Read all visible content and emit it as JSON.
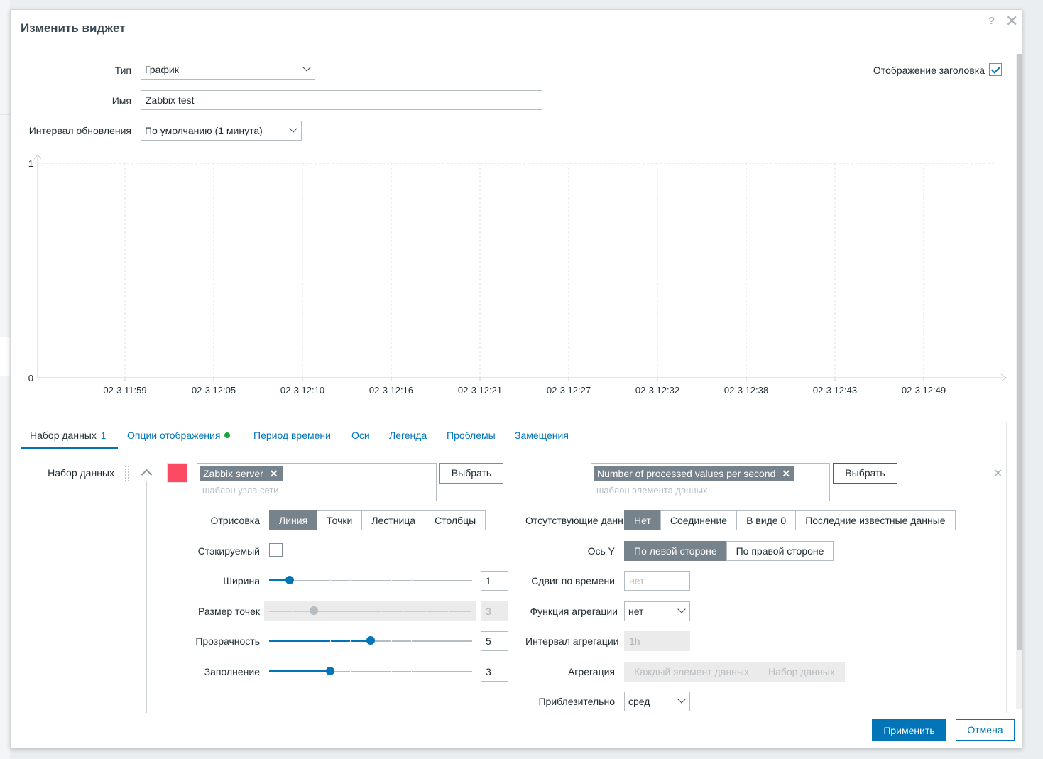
{
  "dialog": {
    "title": "Изменить виджет",
    "help_icon": "?",
    "close_icon": "✕"
  },
  "form": {
    "type_label": "Тип",
    "type_value": "График",
    "name_label": "Имя",
    "name_value": "Zabbix test",
    "refresh_label": "Интервал обновления",
    "refresh_value": "По умолчанию (1 минута)",
    "show_header_label": "Отображение заголовка",
    "show_header_checked": true
  },
  "chart_data": {
    "type": "line",
    "title": "",
    "xlabel": "",
    "ylabel": "",
    "x_ticks": [
      "02-3 11:59",
      "02-3 12:05",
      "02-3 12:10",
      "02-3 12:16",
      "02-3 12:21",
      "02-3 12:27",
      "02-3 12:32",
      "02-3 12:38",
      "02-3 12:43",
      "02-3 12:49"
    ],
    "y_ticks": [
      "0",
      "1"
    ],
    "ylim": [
      0,
      1
    ],
    "series": [],
    "grid": true
  },
  "tabs": [
    {
      "label": "Набор данных",
      "count": "1",
      "active": true
    },
    {
      "label": "Опции отображения",
      "indicator": "green"
    },
    {
      "label": "Период времени"
    },
    {
      "label": "Оси"
    },
    {
      "label": "Легенда"
    },
    {
      "label": "Проблемы"
    },
    {
      "label": "Замещения"
    }
  ],
  "dataset": {
    "label": "Набор данных",
    "color": "#fc4a63",
    "host_chip": "Zabbix server",
    "host_placeholder": "шаблон узла сети",
    "item_chip": "Number of processed values per second",
    "item_placeholder": "шаблон элемента данных",
    "select_label": "Выбрать",
    "chip_remove": "✕",
    "remove_icon": "✕"
  },
  "options_left": {
    "draw_label": "Отрисовка",
    "draw_options": [
      "Линия",
      "Точки",
      "Лестница",
      "Столбцы"
    ],
    "draw_selected": 0,
    "stacked_label": "Стэкируемый",
    "width_label": "Ширина",
    "width_value": "1",
    "width_range": [
      0,
      10
    ],
    "pointsize_label": "Размер точек",
    "pointsize_value": "3",
    "pointsize_range": [
      1,
      10
    ],
    "transparency_label": "Прозрачность",
    "transparency_value": "5",
    "transparency_range": [
      0,
      10
    ],
    "fill_label": "Заполнение",
    "fill_value": "3",
    "fill_range": [
      0,
      10
    ]
  },
  "options_right": {
    "missing_label": "Отсутствующие данные",
    "missing_options": [
      "Нет",
      "Соединение",
      "В виде 0",
      "Последние известные данные"
    ],
    "missing_selected": 0,
    "yaxis_label": "Ось Y",
    "yaxis_options": [
      "По левой стороне",
      "По правой стороне"
    ],
    "yaxis_selected": 0,
    "timeshift_label": "Сдвиг по времени",
    "timeshift_placeholder": "нет",
    "aggfunc_label": "Функция агрегации",
    "aggfunc_value": "нет",
    "agginterval_label": "Интервал агрегации",
    "agginterval_placeholder": "1h",
    "aggregation_label": "Агрегация",
    "aggregation_options": [
      "Каждый элемент данных",
      "Набор данных"
    ],
    "approx_label": "Приблезительно",
    "approx_value": "сред"
  },
  "footer": {
    "apply_label": "Применить",
    "cancel_label": "Отмена"
  }
}
